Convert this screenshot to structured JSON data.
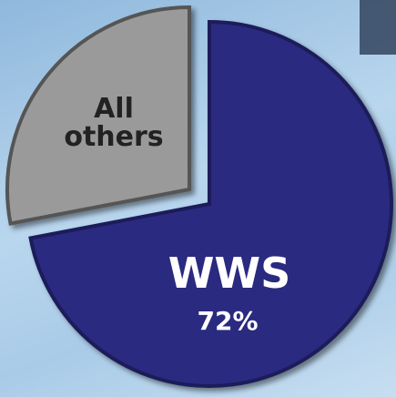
{
  "chart_data": {
    "type": "pie",
    "categories": [
      "WWS",
      "All others"
    ],
    "values": [
      72,
      28
    ],
    "value_labels": [
      "72%",
      null
    ],
    "colors": [
      "#2b2b80",
      "#9a9a9a"
    ]
  }
}
